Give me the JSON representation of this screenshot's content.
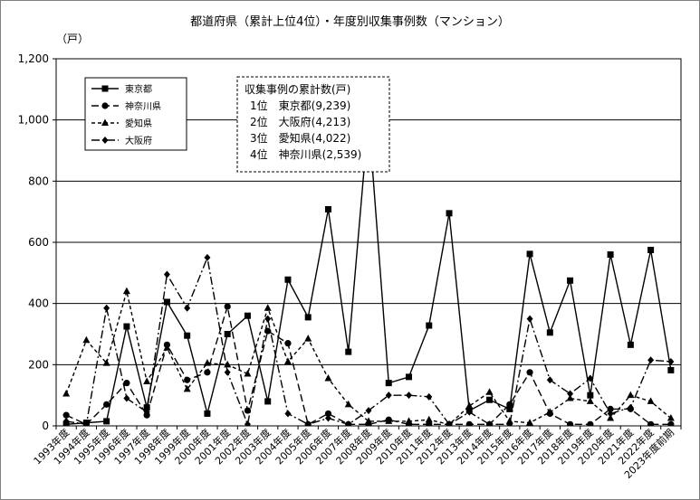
{
  "chart_data": {
    "type": "line",
    "title": "都道府県（累計上位4位）・年度別収集事例数（マンション）",
    "ylabel": "（戸）",
    "ylim": [
      0,
      1200
    ],
    "yticks": [
      "0",
      "200",
      "400",
      "600",
      "800",
      "1,000",
      "1,200"
    ],
    "grid": true,
    "legend_position": "top-left",
    "categories": [
      "1993年度",
      "1994年度",
      "1995年度",
      "1996年度",
      "1997年度",
      "1998年度",
      "1999年度",
      "2000年度",
      "2001年度",
      "2002年度",
      "2003年度",
      "2004年度",
      "2005年度",
      "2006年度",
      "2007年度",
      "2008年度",
      "2009年度",
      "2010年度",
      "2011年度",
      "2012年度",
      "2013年度",
      "2014年度",
      "2015年度",
      "2016年度",
      "2017年度",
      "2018年度",
      "2019年度",
      "2020年度",
      "2021年度",
      "2022年度",
      "2023年度前期"
    ],
    "series": [
      {
        "name": "東京都",
        "style": "solid",
        "marker": "square",
        "values": [
          5,
          10,
          15,
          325,
          60,
          405,
          295,
          40,
          300,
          360,
          80,
          478,
          355,
          708,
          242,
          1010,
          140,
          160,
          328,
          695,
          50,
          85,
          55,
          562,
          305,
          475,
          100,
          560,
          265,
          575,
          182
        ]
      },
      {
        "name": "神奈川県",
        "style": "dashed",
        "marker": "circle",
        "values": [
          35,
          5,
          70,
          140,
          35,
          265,
          150,
          175,
          390,
          50,
          310,
          270,
          5,
          40,
          5,
          5,
          20,
          5,
          5,
          5,
          5,
          5,
          70,
          175,
          40,
          5,
          5,
          55,
          55,
          5,
          5
        ]
      },
      {
        "name": "愛知県",
        "style": "shortdash",
        "marker": "triangle",
        "values": [
          105,
          280,
          205,
          440,
          145,
          255,
          120,
          205,
          200,
          170,
          385,
          210,
          285,
          155,
          70,
          15,
          15,
          15,
          20,
          5,
          65,
          110,
          15,
          10,
          45,
          90,
          80,
          25,
          100,
          80,
          25
        ]
      },
      {
        "name": "大阪府",
        "style": "dashdot",
        "marker": "diamond",
        "values": [
          15,
          5,
          385,
          90,
          45,
          495,
          385,
          550,
          175,
          5,
          350,
          40,
          5,
          25,
          5,
          50,
          100,
          100,
          95,
          5,
          45,
          5,
          5,
          350,
          150,
          105,
          155,
          40,
          60,
          215,
          210
        ]
      }
    ],
    "annotation": {
      "heading": "収集事例の累計数(戸)",
      "lines": [
        "1位　東京都(9,239)",
        "2位　大阪府(4,213)",
        "3位　愛知県(4,022)",
        "4位　神奈川県(2,539)"
      ]
    }
  }
}
